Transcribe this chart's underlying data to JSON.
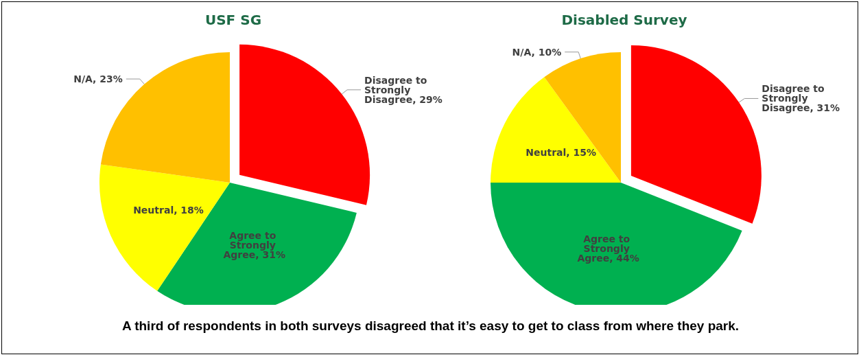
{
  "chart_data": [
    {
      "type": "pie",
      "title": "USF SG",
      "categories": [
        "Disagree to Strongly Disagree",
        "Agree to Strongly Agree",
        "Neutral",
        "N/A"
      ],
      "values": [
        29,
        31,
        18,
        23
      ],
      "value_labels": [
        "29%",
        "31%",
        "18%",
        "23%"
      ],
      "colors": [
        "#ff0000",
        "#00b050",
        "#ffff00",
        "#ffc000"
      ],
      "legend": false,
      "annotations": [
        "A third of respondents in both surveys disagreed that it’s easy to get to class from where they park."
      ]
    },
    {
      "type": "pie",
      "title": "Disabled Survey",
      "categories": [
        "Disagree to Strongly Disagree",
        "Agree to Strongly Agree",
        "Neutral",
        "N/A"
      ],
      "values": [
        31,
        44,
        15,
        10
      ],
      "value_labels": [
        "31%",
        "44%",
        "15%",
        "10%"
      ],
      "colors": [
        "#ff0000",
        "#00b050",
        "#ffff00",
        "#ffc000"
      ],
      "legend": false
    }
  ]
}
